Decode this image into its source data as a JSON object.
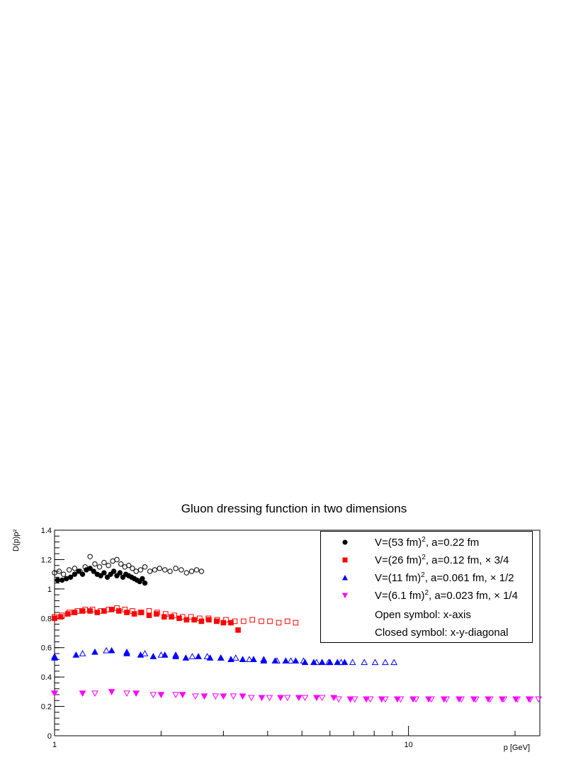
{
  "chart_data": {
    "type": "scatter",
    "title": "Gluon dressing function in two dimensions",
    "xlabel": "p [GeV]",
    "ylabel": "D(p)p²",
    "xscale": "log",
    "xlim": [
      1,
      23.5
    ],
    "ylim": [
      0,
      1.4
    ],
    "yticks": [
      "0",
      "0.2",
      "0.4",
      "0.6",
      "0.8",
      "1",
      "1.2",
      "1.4"
    ],
    "xticks": [
      "1",
      "10"
    ],
    "grid": false,
    "legend_position": "top-right",
    "series": [
      {
        "name": "V=(53 fm)², a=0.22 fm",
        "marker": "circle",
        "color": "#000000",
        "closed": {
          "x": [
            1.02,
            1.05,
            1.08,
            1.11,
            1.14,
            1.17,
            1.2,
            1.23,
            1.26,
            1.29,
            1.32,
            1.35,
            1.38,
            1.41,
            1.44,
            1.47,
            1.5,
            1.53,
            1.56,
            1.59,
            1.62,
            1.65,
            1.68,
            1.71,
            1.74,
            1.77,
            1.8
          ],
          "y": [
            1.06,
            1.06,
            1.07,
            1.08,
            1.1,
            1.12,
            1.1,
            1.13,
            1.14,
            1.12,
            1.1,
            1.09,
            1.11,
            1.08,
            1.1,
            1.12,
            1.09,
            1.11,
            1.08,
            1.1,
            1.09,
            1.08,
            1.07,
            1.06,
            1.05,
            1.07,
            1.04
          ]
        },
        "open": {
          "x": [
            1.0,
            1.03,
            1.06,
            1.1,
            1.14,
            1.18,
            1.22,
            1.26,
            1.3,
            1.34,
            1.38,
            1.42,
            1.46,
            1.5,
            1.54,
            1.58,
            1.62,
            1.66,
            1.7,
            1.75,
            1.8,
            1.86,
            1.92,
            1.98,
            2.05,
            2.12,
            2.2,
            2.28,
            2.36,
            2.44,
            2.52,
            2.6
          ],
          "y": [
            1.11,
            1.12,
            1.1,
            1.13,
            1.14,
            1.12,
            1.15,
            1.22,
            1.17,
            1.15,
            1.18,
            1.16,
            1.19,
            1.2,
            1.17,
            1.15,
            1.16,
            1.14,
            1.12,
            1.13,
            1.15,
            1.12,
            1.13,
            1.14,
            1.13,
            1.12,
            1.14,
            1.13,
            1.11,
            1.12,
            1.13,
            1.12
          ]
        }
      },
      {
        "name": "V=(26 fm)², a=0.12 fm, × 3/4",
        "marker": "square",
        "color": "#ff0000",
        "closed": {
          "x": [
            1.0,
            1.04,
            1.09,
            1.14,
            1.2,
            1.26,
            1.32,
            1.38,
            1.45,
            1.52,
            1.6,
            1.68,
            1.76,
            1.85,
            1.94,
            2.04,
            2.14,
            2.25,
            2.36,
            2.48,
            2.6,
            2.73,
            2.87,
            3.0,
            3.15,
            3.3
          ],
          "y": [
            0.8,
            0.81,
            0.83,
            0.84,
            0.85,
            0.85,
            0.84,
            0.85,
            0.86,
            0.85,
            0.84,
            0.83,
            0.84,
            0.82,
            0.83,
            0.81,
            0.81,
            0.8,
            0.79,
            0.79,
            0.78,
            0.79,
            0.78,
            0.77,
            0.77,
            0.72
          ]
        },
        "open": {
          "x": [
            1.0,
            1.05,
            1.1,
            1.16,
            1.22,
            1.28,
            1.35,
            1.42,
            1.5,
            1.58,
            1.66,
            1.75,
            1.85,
            1.95,
            2.06,
            2.18,
            2.3,
            2.43,
            2.57,
            2.72,
            2.88,
            3.05,
            3.23,
            3.42,
            3.62,
            3.84,
            4.06,
            4.3,
            4.55,
            4.8
          ],
          "y": [
            0.81,
            0.82,
            0.84,
            0.85,
            0.86,
            0.86,
            0.85,
            0.86,
            0.87,
            0.86,
            0.85,
            0.84,
            0.85,
            0.84,
            0.83,
            0.82,
            0.81,
            0.81,
            0.8,
            0.8,
            0.79,
            0.79,
            0.78,
            0.78,
            0.79,
            0.78,
            0.78,
            0.77,
            0.78,
            0.77
          ]
        }
      },
      {
        "name": "V=(11 fm)², a=0.061 fm, × 1/2",
        "marker": "triangle-up",
        "color": "#0000ff",
        "closed": {
          "x": [
            1.0,
            1.15,
            1.3,
            1.45,
            1.6,
            1.75,
            1.9,
            2.05,
            2.2,
            2.35,
            2.55,
            2.75,
            2.95,
            3.15,
            3.4,
            3.65,
            3.9,
            4.2,
            4.5,
            4.8,
            5.1,
            5.4,
            5.7,
            6.0,
            6.3,
            6.6
          ],
          "y": [
            0.53,
            0.55,
            0.57,
            0.58,
            0.56,
            0.55,
            0.54,
            0.55,
            0.54,
            0.53,
            0.54,
            0.53,
            0.53,
            0.52,
            0.52,
            0.52,
            0.51,
            0.51,
            0.51,
            0.51,
            0.5,
            0.5,
            0.5,
            0.5,
            0.5,
            0.5
          ]
        },
        "open": {
          "x": [
            1.0,
            1.2,
            1.4,
            1.6,
            1.8,
            2.0,
            2.2,
            2.45,
            2.7,
            2.95,
            3.25,
            3.55,
            3.9,
            4.25,
            4.65,
            5.05,
            5.5,
            5.95,
            6.45,
            6.95,
            7.5,
            8.05,
            8.6,
            9.1
          ],
          "y": [
            0.54,
            0.56,
            0.58,
            0.57,
            0.56,
            0.55,
            0.55,
            0.54,
            0.54,
            0.53,
            0.53,
            0.52,
            0.52,
            0.51,
            0.51,
            0.51,
            0.5,
            0.5,
            0.5,
            0.5,
            0.5,
            0.5,
            0.5,
            0.5
          ]
        }
      },
      {
        "name": "V=(6.1 fm)², a=0.023 fm, × 1/4",
        "marker": "triangle-down",
        "color": "#ff00ff",
        "closed": {
          "x": [
            1.0,
            1.2,
            1.45,
            1.7,
            2.0,
            2.3,
            2.65,
            3.0,
            3.4,
            3.85,
            4.35,
            4.9,
            5.5,
            6.15,
            6.85,
            7.6,
            8.4,
            9.3,
            10.3,
            11.4,
            12.6,
            13.9,
            15.3,
            16.8,
            18.4,
            20.1,
            21.9
          ],
          "y": [
            0.29,
            0.29,
            0.3,
            0.29,
            0.28,
            0.28,
            0.27,
            0.27,
            0.27,
            0.26,
            0.26,
            0.26,
            0.26,
            0.26,
            0.25,
            0.25,
            0.25,
            0.25,
            0.25,
            0.25,
            0.25,
            0.25,
            0.25,
            0.25,
            0.25,
            0.25,
            0.25
          ]
        },
        "open": {
          "x": [
            1.0,
            1.3,
            1.6,
            1.9,
            2.2,
            2.5,
            2.85,
            3.2,
            3.6,
            4.05,
            4.55,
            5.1,
            5.7,
            6.35,
            7.05,
            7.8,
            8.6,
            9.5,
            10.5,
            11.6,
            12.8,
            14.1,
            15.5,
            17.0,
            18.6,
            20.3,
            22.1,
            23.3
          ],
          "y": [
            0.29,
            0.29,
            0.29,
            0.28,
            0.28,
            0.27,
            0.27,
            0.27,
            0.26,
            0.26,
            0.26,
            0.26,
            0.26,
            0.25,
            0.25,
            0.25,
            0.25,
            0.25,
            0.25,
            0.25,
            0.25,
            0.25,
            0.25,
            0.25,
            0.25,
            0.25,
            0.25,
            0.25
          ]
        }
      }
    ],
    "legend_notes": [
      "Open symbol: x-axis",
      "Closed symbol: x-y-diagonal"
    ]
  },
  "labels": {
    "title": "Gluon dressing function in two dimensions",
    "xlabel": "p [GeV]",
    "ylabel": "D(p)p²",
    "legend": [
      {
        "pre": "V=(53 fm)",
        "sup": "2",
        "post": ", a=0.22 fm"
      },
      {
        "pre": "V=(26 fm)",
        "sup": "2",
        "post": ", a=0.12 fm, × 3/4"
      },
      {
        "pre": "V=(11 fm)",
        "sup": "2",
        "post": ", a=0.061 fm, × 1/2"
      },
      {
        "pre": "V=(6.1 fm)",
        "sup": "2",
        "post": ", a=0.023 fm, × 1/4"
      }
    ],
    "note_open": "Open symbol: x-axis",
    "note_closed": "Closed symbol: x-y-diagonal"
  }
}
